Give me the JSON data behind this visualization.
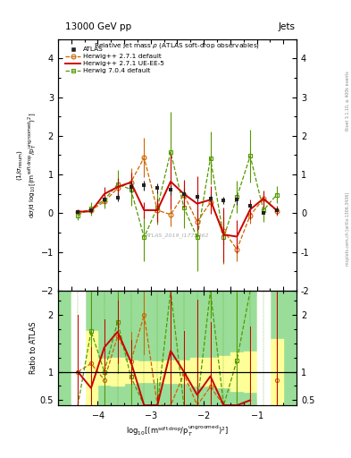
{
  "header_left": "13000 GeV pp",
  "header_right": "Jets",
  "plot_title": "Relative jet mass ρ (ATLAS soft-drop observables)",
  "watermark": "ATLAS_2019_I1772062",
  "rivet_label": "Rivet 3.1.10, ≥ 400k events",
  "arxiv_label": "mcplots.cern.ch [arXiv:1306.3436]",
  "x_centers": [
    -4.375,
    -4.125,
    -3.875,
    -3.625,
    -3.375,
    -3.125,
    -2.875,
    -2.625,
    -2.375,
    -2.125,
    -1.875,
    -1.625,
    -1.375,
    -1.125,
    -0.875,
    -0.625
  ],
  "x_edges": [
    -4.5,
    -4.25,
    -4.0,
    -3.75,
    -3.5,
    -3.25,
    -3.0,
    -2.75,
    -2.5,
    -2.25,
    -2.0,
    -1.75,
    -1.5,
    -1.25,
    -1.0,
    -0.75,
    -0.5
  ],
  "atlas_y": [
    0.04,
    0.07,
    0.35,
    0.4,
    0.68,
    0.72,
    0.65,
    0.6,
    0.5,
    0.42,
    0.38,
    0.33,
    0.35,
    0.2,
    0.02,
    0.07
  ],
  "atlas_yerr": [
    0.04,
    0.05,
    0.08,
    0.1,
    0.13,
    0.13,
    0.12,
    0.12,
    0.1,
    0.1,
    0.09,
    0.09,
    0.12,
    0.07,
    0.04,
    0.04
  ],
  "hw271d_y": [
    0.04,
    0.08,
    0.3,
    0.65,
    0.8,
    1.44,
    0.08,
    -0.03,
    0.48,
    -0.22,
    0.28,
    -0.45,
    -0.93,
    -0.05,
    0.37,
    0.06
  ],
  "hw271d_yerr": [
    0.04,
    0.07,
    0.13,
    0.26,
    0.36,
    0.5,
    0.36,
    0.3,
    0.26,
    0.35,
    0.26,
    0.35,
    0.3,
    0.22,
    0.17,
    0.12
  ],
  "hw271u_y": [
    0.04,
    0.05,
    0.5,
    0.68,
    0.8,
    0.08,
    0.08,
    0.82,
    0.5,
    0.25,
    0.35,
    -0.55,
    -0.6,
    0.1,
    0.38,
    0.08
  ],
  "hw271u_yerr": [
    0.04,
    0.05,
    0.17,
    0.22,
    0.26,
    0.2,
    0.3,
    0.7,
    0.36,
    0.7,
    0.36,
    0.7,
    0.42,
    0.26,
    0.2,
    0.12
  ],
  "hw704d_y": [
    -0.05,
    0.12,
    0.35,
    0.75,
    0.62,
    -0.62,
    0.15,
    1.58,
    0.15,
    -0.62,
    1.42,
    -0.62,
    0.42,
    1.48,
    0.08,
    0.48
  ],
  "hw704d_yerr": [
    0.13,
    0.17,
    0.22,
    0.36,
    0.42,
    0.62,
    0.42,
    1.05,
    0.52,
    0.86,
    0.68,
    0.68,
    0.42,
    0.68,
    0.3,
    0.22
  ],
  "ylim_main": [
    -2.0,
    4.5
  ],
  "ylim_ratio": [
    0.41,
    2.42
  ],
  "xlim": [
    -4.75,
    -0.25
  ],
  "c_atlas": "#222222",
  "c_hw271d": "#cc6600",
  "c_hw271u": "#cc0000",
  "c_hw704d": "#559900",
  "c_green_bg": "#99dd99",
  "c_yellow_bg": "#ffff99"
}
